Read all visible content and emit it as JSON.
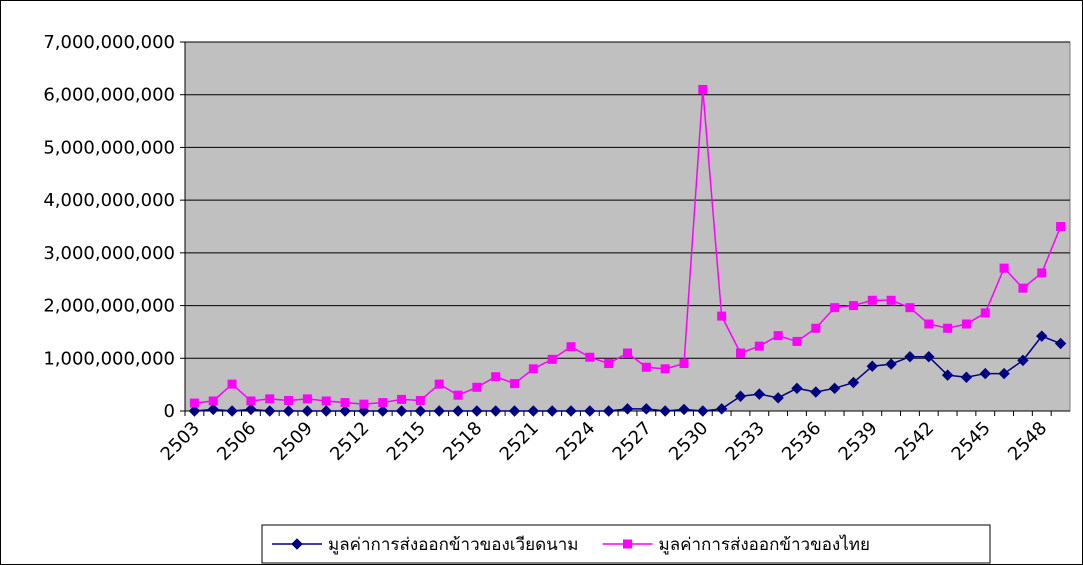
{
  "chart_data": {
    "type": "line",
    "categories": [
      "2503",
      null,
      null,
      "2506",
      null,
      null,
      "2509",
      null,
      null,
      "2512",
      null,
      null,
      "2515",
      null,
      null,
      "2518",
      null,
      null,
      "2521",
      null,
      null,
      "2524",
      null,
      null,
      "2527",
      null,
      null,
      "2530",
      null,
      null,
      "2533",
      null,
      null,
      "2536",
      null,
      null,
      "2539",
      null,
      null,
      "2542",
      null,
      null,
      "2545",
      null,
      null,
      "2548",
      null
    ],
    "series": [
      {
        "name": "มูลค่าการส่งออกข้าวของเวียดนาม",
        "color": "#000080",
        "marker": "diamond",
        "values": [
          0,
          30000000,
          0,
          30000000,
          0,
          0,
          0,
          0,
          0,
          0,
          0,
          0,
          0,
          0,
          0,
          0,
          0,
          0,
          0,
          0,
          0,
          0,
          0,
          40000000,
          40000000,
          0,
          30000000,
          0,
          40000000,
          280000000,
          320000000,
          250000000,
          430000000,
          360000000,
          430000000,
          540000000,
          850000000,
          890000000,
          1030000000,
          1030000000,
          680000000,
          640000000,
          710000000,
          710000000,
          960000000,
          1420000000,
          1280000000
        ]
      },
      {
        "name": "มูลค่าการส่งออกข้าวของไทย",
        "color": "#ff00ff",
        "marker": "square",
        "values": [
          150000000,
          190000000,
          510000000,
          190000000,
          230000000,
          200000000,
          230000000,
          190000000,
          160000000,
          130000000,
          160000000,
          220000000,
          200000000,
          510000000,
          300000000,
          450000000,
          650000000,
          520000000,
          800000000,
          980000000,
          1220000000,
          1020000000,
          900000000,
          1100000000,
          830000000,
          800000000,
          900000000,
          6100000000,
          1800000000,
          1100000000,
          1230000000,
          1430000000,
          1320000000,
          1570000000,
          1960000000,
          2000000000,
          2100000000,
          2100000000,
          1960000000,
          1650000000,
          1570000000,
          1650000000,
          1860000000,
          2710000000,
          2330000000,
          2620000000,
          3500000000
        ]
      }
    ],
    "ylim": [
      0,
      7000000000
    ],
    "yticks": [
      0,
      {
        "value": 1000000000,
        "label": "1,000,000,000"
      },
      {
        "value": 2000000000,
        "label": "2,000,000,000"
      },
      {
        "value": 3000000000,
        "label": "3,000,000,000"
      },
      {
        "value": 4000000000,
        "label": "4,000,000,000"
      },
      {
        "value": 5000000000,
        "label": "5,000,000,000"
      },
      {
        "value": 6000000000,
        "label": "6,000,000,000"
      },
      {
        "value": 7000000000,
        "label": "7,000,000,000"
      }
    ],
    "grid": true,
    "legend": "bottom",
    "plot_background": "#c0c0c0"
  }
}
